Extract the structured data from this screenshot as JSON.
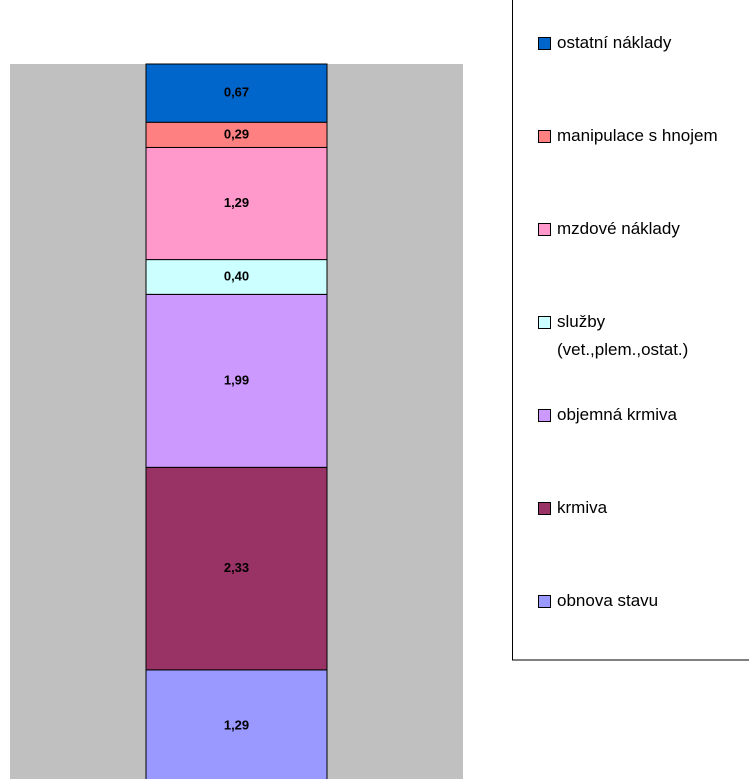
{
  "chart_data": {
    "type": "stacked-bar",
    "categories": [
      null
    ],
    "series": [
      {
        "name": "obnova stavu",
        "color": "#9999ff",
        "values": [
          1.29
        ],
        "value_labels": [
          "1,29"
        ]
      },
      {
        "name": "krmiva",
        "color": "#993366",
        "values": [
          2.33
        ],
        "value_labels": [
          "2,33"
        ]
      },
      {
        "name": "objemná krmiva",
        "color": "#cc99ff",
        "values": [
          1.99
        ],
        "value_labels": [
          "1,99"
        ]
      },
      {
        "name": "služby (vet.,plem.,ostat.)",
        "color": "#ccffff",
        "values": [
          0.4
        ],
        "value_labels": [
          "0,40"
        ]
      },
      {
        "name": "mzdové náklady",
        "color": "#ff99cc",
        "values": [
          1.29
        ],
        "value_labels": [
          "1,29"
        ]
      },
      {
        "name": "manipulace s hnojem",
        "color": "#ff8080",
        "values": [
          0.29
        ],
        "value_labels": [
          "0,29"
        ]
      },
      {
        "name": "ostatní náklady",
        "color": "#0066cc",
        "values": [
          0.67
        ],
        "value_labels": [
          "0,67"
        ]
      }
    ],
    "legend": "right"
  }
}
